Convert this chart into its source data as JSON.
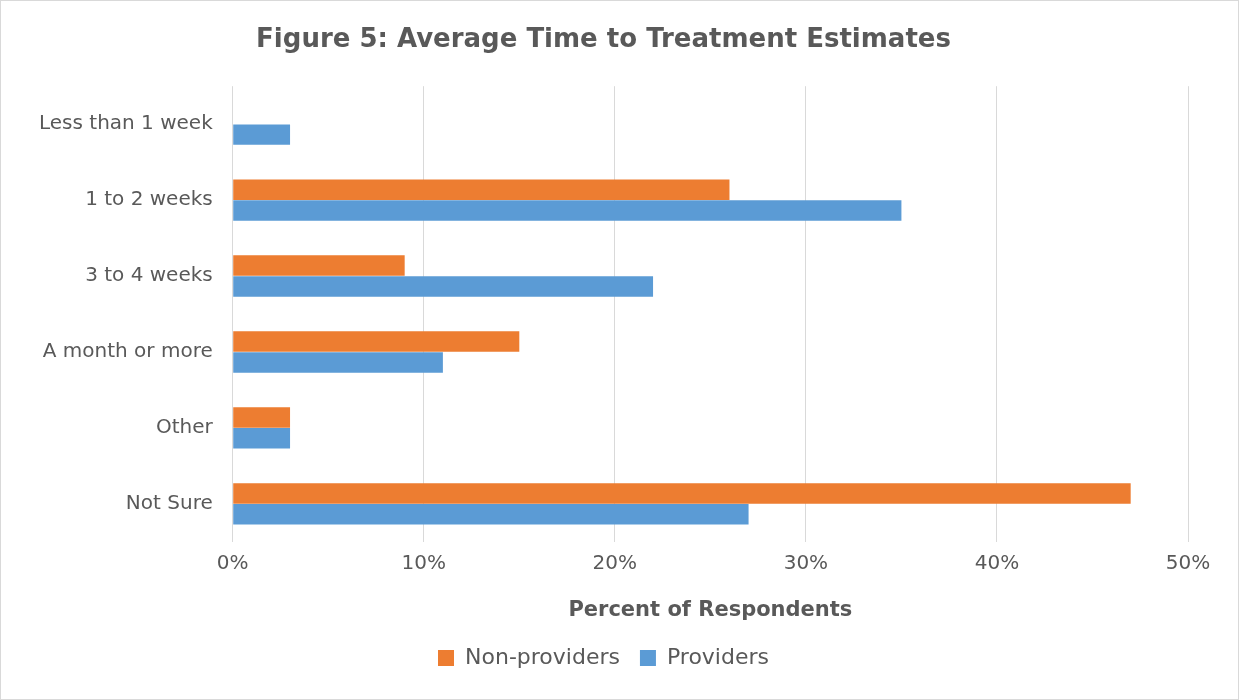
{
  "chart_data": {
    "type": "bar",
    "orientation": "horizontal",
    "title": "Figure 5: Average Time to Treatment Estimates",
    "xlabel": "Percent of Respondents",
    "categories": [
      "Less than 1 week",
      "1 to 2 weeks",
      "3 to 4 weeks",
      "A month or more",
      "Other",
      "Not Sure"
    ],
    "series": [
      {
        "name": "Non-providers",
        "color": "#ed7d31",
        "values": [
          0,
          26,
          9,
          15,
          3,
          47
        ]
      },
      {
        "name": "Providers",
        "color": "#5b9bd5",
        "values": [
          3,
          35,
          22,
          11,
          3,
          27
        ]
      }
    ],
    "xlim": [
      0,
      50
    ],
    "xticks": [
      {
        "value": 0,
        "label": "0%"
      },
      {
        "value": 10,
        "label": "10%"
      },
      {
        "value": 20,
        "label": "20%"
      },
      {
        "value": 30,
        "label": "30%"
      },
      {
        "value": 40,
        "label": "40%"
      },
      {
        "value": 50,
        "label": "50%"
      }
    ],
    "grid": "x",
    "legend": "bottom"
  }
}
